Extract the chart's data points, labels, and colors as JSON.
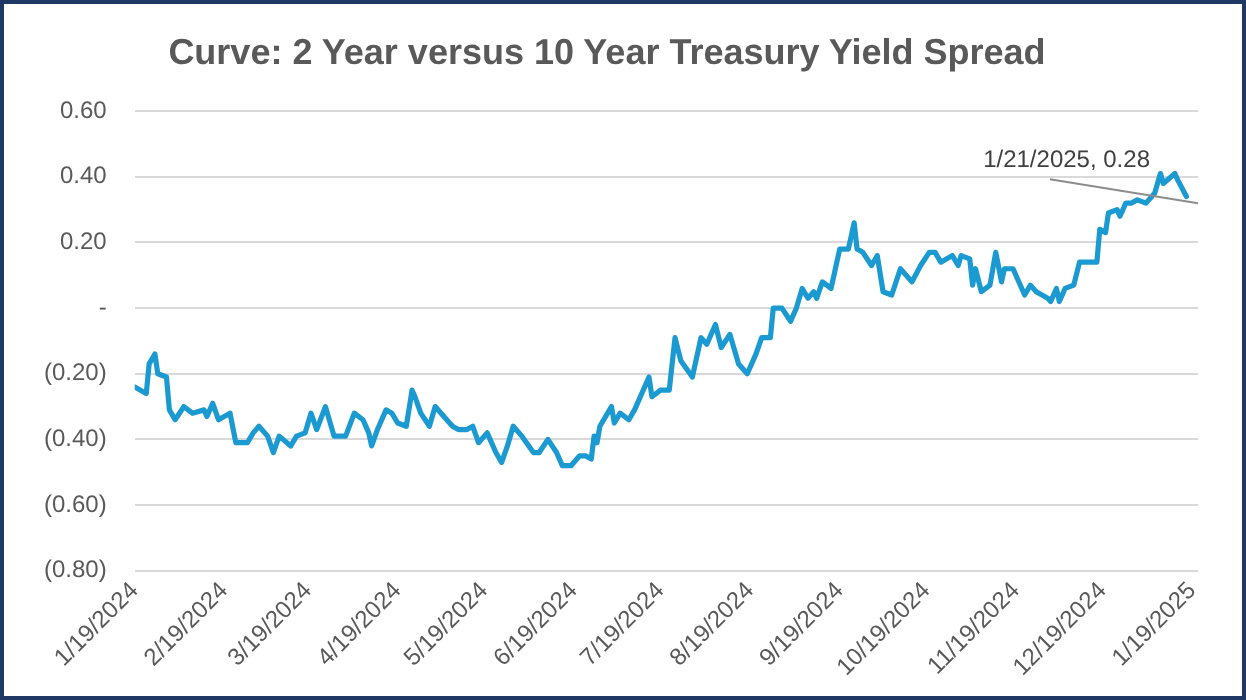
{
  "chart_data": {
    "type": "line",
    "title": "Curve: 2 Year versus 10 Year Treasury Yield Spread",
    "x": [
      "2024-01-19",
      "2024-01-23",
      "2024-01-24",
      "2024-01-26",
      "2024-01-27",
      "2024-01-30",
      "2024-01-31",
      "2024-02-02",
      "2024-02-05",
      "2024-02-08",
      "2024-02-12",
      "2024-02-13",
      "2024-02-15",
      "2024-02-17",
      "2024-02-21",
      "2024-02-23",
      "2024-02-27",
      "2024-02-29",
      "2024-03-02",
      "2024-03-05",
      "2024-03-07",
      "2024-03-09",
      "2024-03-13",
      "2024-03-15",
      "2024-03-18",
      "2024-03-20",
      "2024-03-22",
      "2024-03-25",
      "2024-03-28",
      "2024-04-01",
      "2024-04-04",
      "2024-04-07",
      "2024-04-09",
      "2024-04-10",
      "2024-04-12",
      "2024-04-15",
      "2024-04-17",
      "2024-04-19",
      "2024-04-22",
      "2024-04-24",
      "2024-04-25",
      "2024-04-27",
      "2024-04-30",
      "2024-05-02",
      "2024-05-05",
      "2024-05-08",
      "2024-05-10",
      "2024-05-13",
      "2024-05-15",
      "2024-05-17",
      "2024-05-20",
      "2024-05-23",
      "2024-05-25",
      "2024-05-27",
      "2024-05-29",
      "2024-06-01",
      "2024-06-05",
      "2024-06-07",
      "2024-06-10",
      "2024-06-13",
      "2024-06-15",
      "2024-06-18",
      "2024-06-21",
      "2024-06-23",
      "2024-06-25",
      "2024-06-26",
      "2024-06-27",
      "2024-06-28",
      "2024-07-02",
      "2024-07-03",
      "2024-07-05",
      "2024-07-08",
      "2024-07-10",
      "2024-07-15",
      "2024-07-16",
      "2024-07-19",
      "2024-07-22",
      "2024-07-24",
      "2024-07-26",
      "2024-07-30",
      "2024-08-02",
      "2024-08-04",
      "2024-08-07",
      "2024-08-09",
      "2024-08-12",
      "2024-08-15",
      "2024-08-18",
      "2024-08-21",
      "2024-08-23",
      "2024-08-26",
      "2024-08-27",
      "2024-08-30",
      "2024-09-02",
      "2024-09-04",
      "2024-09-06",
      "2024-09-08",
      "2024-09-10",
      "2024-09-11",
      "2024-09-13",
      "2024-09-16",
      "2024-09-19",
      "2024-09-22",
      "2024-09-24",
      "2024-09-25",
      "2024-09-27",
      "2024-09-30",
      "2024-10-02",
      "2024-10-04",
      "2024-10-07",
      "2024-10-10",
      "2024-10-14",
      "2024-10-17",
      "2024-10-20",
      "2024-10-22",
      "2024-10-24",
      "2024-10-28",
      "2024-10-30",
      "2024-10-31",
      "2024-11-03",
      "2024-11-04",
      "2024-11-05",
      "2024-11-07",
      "2024-11-10",
      "2024-11-12",
      "2024-11-14",
      "2024-11-15",
      "2024-11-18",
      "2024-11-22",
      "2024-11-24",
      "2024-11-26",
      "2024-11-30",
      "2024-12-01",
      "2024-12-03",
      "2024-12-04",
      "2024-12-06",
      "2024-12-09",
      "2024-12-11",
      "2024-12-15",
      "2024-12-17",
      "2024-12-18",
      "2024-12-20",
      "2024-12-21",
      "2024-12-24",
      "2024-12-25",
      "2024-12-27",
      "2024-12-29",
      "2024-12-31",
      "2025-01-03",
      "2025-01-06",
      "2025-01-08",
      "2025-01-09",
      "2025-01-13",
      "2025-01-14",
      "2025-01-17"
    ],
    "series": [
      {
        "color": "#1a9ad0",
        "values": [
          -0.24,
          -0.26,
          -0.17,
          -0.14,
          -0.2,
          -0.21,
          -0.31,
          -0.34,
          -0.3,
          -0.32,
          -0.31,
          -0.33,
          -0.29,
          -0.34,
          -0.32,
          -0.41,
          -0.41,
          -0.38,
          -0.36,
          -0.39,
          -0.44,
          -0.39,
          -0.42,
          -0.39,
          -0.38,
          -0.32,
          -0.37,
          -0.3,
          -0.39,
          -0.39,
          -0.32,
          -0.34,
          -0.38,
          -0.42,
          -0.37,
          -0.31,
          -0.32,
          -0.35,
          -0.36,
          -0.25,
          -0.27,
          -0.32,
          -0.36,
          -0.3,
          -0.33,
          -0.36,
          -0.37,
          -0.37,
          -0.36,
          -0.41,
          -0.38,
          -0.44,
          -0.47,
          -0.42,
          -0.36,
          -0.39,
          -0.44,
          -0.44,
          -0.4,
          -0.44,
          -0.48,
          -0.48,
          -0.45,
          -0.45,
          -0.46,
          -0.39,
          -0.41,
          -0.36,
          -0.3,
          -0.35,
          -0.32,
          -0.34,
          -0.31,
          -0.21,
          -0.27,
          -0.25,
          -0.25,
          -0.09,
          -0.16,
          -0.21,
          -0.09,
          -0.11,
          -0.05,
          -0.12,
          -0.08,
          -0.17,
          -0.2,
          -0.14,
          -0.09,
          -0.09,
          0.0,
          0.0,
          -0.04,
          0.0,
          0.06,
          0.03,
          0.05,
          0.03,
          0.08,
          0.06,
          0.18,
          0.18,
          0.26,
          0.18,
          0.17,
          0.13,
          0.16,
          0.05,
          0.04,
          0.12,
          0.08,
          0.13,
          0.17,
          0.17,
          0.14,
          0.16,
          0.13,
          0.16,
          0.15,
          0.07,
          0.12,
          0.05,
          0.07,
          0.17,
          0.08,
          0.12,
          0.12,
          0.04,
          0.07,
          0.05,
          0.03,
          0.02,
          0.06,
          0.02,
          0.06,
          0.07,
          0.14,
          0.14,
          0.14,
          0.24,
          0.23,
          0.29,
          0.3,
          0.28,
          0.32,
          0.32,
          0.33,
          0.32,
          0.35,
          0.41,
          0.38,
          0.41,
          0.39,
          0.34
        ]
      }
    ],
    "xlim": [
      "2024-01-19",
      "2025-01-21"
    ],
    "xticks": [
      {
        "value": "2024-01-19",
        "label": "1/19/2024"
      },
      {
        "value": "2024-02-19",
        "label": "2/19/2024"
      },
      {
        "value": "2024-03-19",
        "label": "3/19/2024"
      },
      {
        "value": "2024-04-19",
        "label": "4/19/2024"
      },
      {
        "value": "2024-05-19",
        "label": "5/19/2024"
      },
      {
        "value": "2024-06-19",
        "label": "6/19/2024"
      },
      {
        "value": "2024-07-19",
        "label": "7/19/2024"
      },
      {
        "value": "2024-08-19",
        "label": "8/19/2024"
      },
      {
        "value": "2024-09-19",
        "label": "9/19/2024"
      },
      {
        "value": "2024-10-19",
        "label": "10/19/2024"
      },
      {
        "value": "2024-11-19",
        "label": "11/19/2024"
      },
      {
        "value": "2024-12-19",
        "label": "12/19/2024"
      },
      {
        "value": "2025-01-19",
        "label": "1/19/2025"
      }
    ],
    "ylim": [
      -0.8,
      0.6
    ],
    "yticks": [
      {
        "value": -0.8,
        "label": "(0.80)"
      },
      {
        "value": -0.6,
        "label": "(0.60)"
      },
      {
        "value": -0.4,
        "label": "(0.40)"
      },
      {
        "value": -0.2,
        "label": "(0.20)"
      },
      {
        "value": 0,
        "label": "-"
      },
      {
        "value": 0.2,
        "label": "0.20"
      },
      {
        "value": 0.4,
        "label": "0.40"
      },
      {
        "value": 0.6,
        "label": "0.60"
      }
    ],
    "annotations": [
      "1/21/2025, 0.28"
    ],
    "grid": "y",
    "legend": false,
    "marker": "none",
    "line_style": "solid"
  }
}
